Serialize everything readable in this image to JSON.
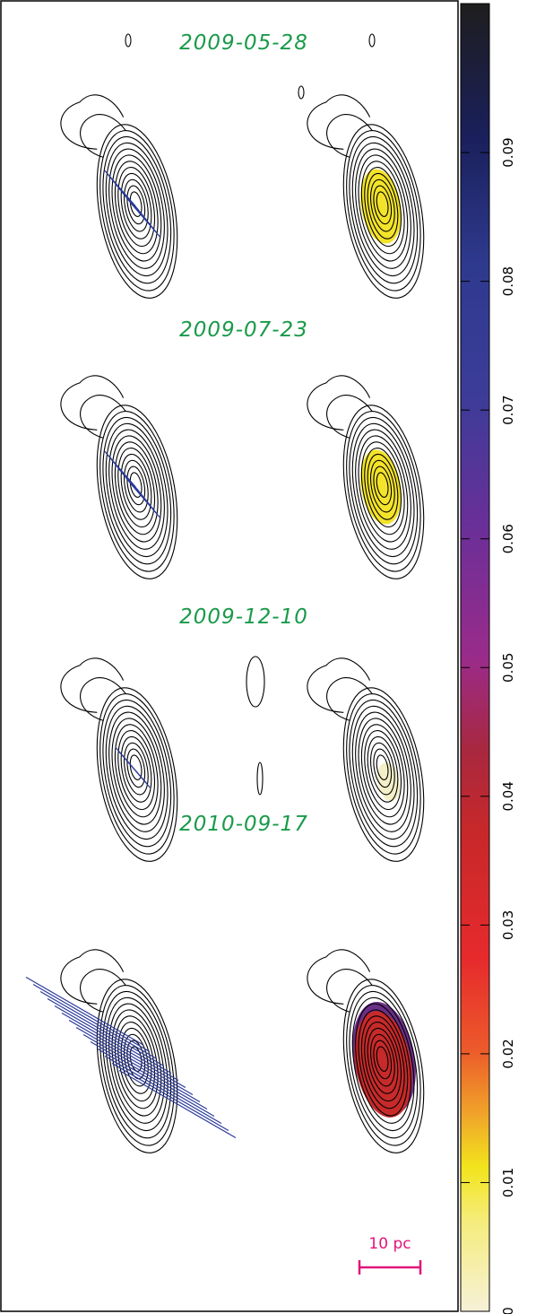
{
  "panels": [
    {
      "label": "2009-05-28"
    },
    {
      "label": "2009-07-23"
    },
    {
      "label": "2009-12-10"
    },
    {
      "label": "2010-09-17"
    }
  ],
  "scale_bar": "10 pc",
  "colorbar": {
    "lim": [
      0,
      0.1015
    ],
    "ticks": [
      0,
      0.01,
      0.02,
      0.03,
      0.04,
      0.05,
      0.06,
      0.07,
      0.08,
      0.09
    ]
  }
}
